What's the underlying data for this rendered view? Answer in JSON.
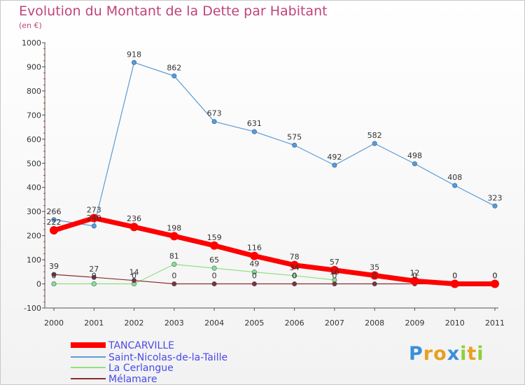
{
  "chart_data": {
    "type": "line",
    "title": "Evolution du Montant de la Dette par Habitant",
    "subtitle": "(en €)",
    "x": [
      "2000",
      "2001",
      "2002",
      "2003",
      "2004",
      "2005",
      "2006",
      "2007",
      "2008",
      "2009",
      "2010",
      "2011"
    ],
    "ylim": [
      -100,
      1000
    ],
    "yticks": [
      -100,
      0,
      100,
      200,
      300,
      400,
      500,
      600,
      700,
      800,
      900,
      1000
    ],
    "grid": false,
    "legend_position": "bottom-left",
    "series": [
      {
        "name": "TANCARVILLE",
        "color": "#ff0000",
        "values": [
          222,
          273,
          236,
          198,
          159,
          116,
          78,
          57,
          35,
          12,
          0,
          0
        ]
      },
      {
        "name": "Saint-Nicolas-de-la-Taille",
        "color": "#5b9bd5",
        "values": [
          266,
          240,
          918,
          862,
          673,
          631,
          575,
          492,
          582,
          498,
          408,
          323
        ]
      },
      {
        "name": "La Cerlangue",
        "color": "#90e080",
        "values": [
          0,
          0,
          0,
          81,
          65,
          49,
          34,
          16,
          null,
          null,
          null,
          null
        ]
      },
      {
        "name": "Mélamare",
        "color": "#8b2d2d",
        "values": [
          39,
          27,
          14,
          0,
          0,
          0,
          0,
          0,
          0,
          0,
          0,
          0
        ]
      }
    ]
  },
  "logo": {
    "letters": [
      "P",
      "r",
      "o",
      "x",
      "i",
      "t",
      "i"
    ],
    "colors": [
      "#3a8fd9",
      "#e8a020",
      "#e8a020",
      "#3a8fd9",
      "#8fcf3a",
      "#e8a020",
      "#8fcf3a"
    ]
  }
}
